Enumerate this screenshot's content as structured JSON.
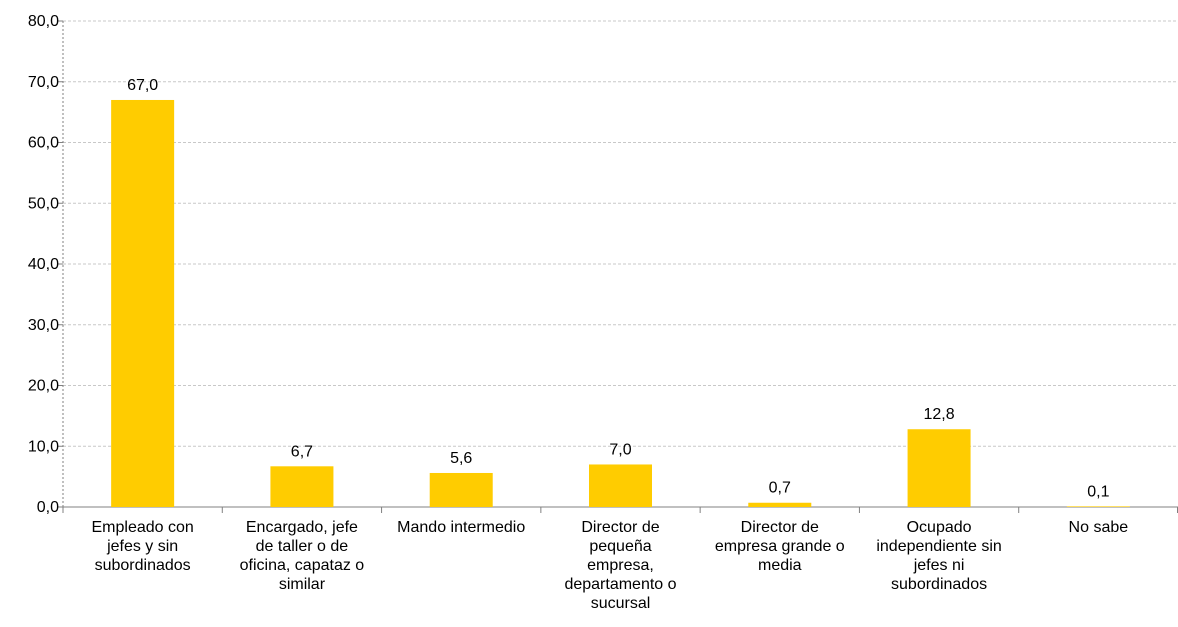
{
  "chart_data": {
    "type": "bar",
    "categories": [
      "Empleado con jefes y sin subordinados",
      "Encargado, jefe de taller o de oficina, capataz o similar",
      "Mando intermedio",
      "Director de pequeña empresa, departamento o sucursal",
      "Director de empresa grande o media",
      "Ocupado independiente sin jefes ni subordinados",
      "No sabe"
    ],
    "category_lines": [
      [
        "Empleado con",
        "jefes y sin",
        "subordinados"
      ],
      [
        "Encargado, jefe",
        "de taller o de",
        "oficina, capataz o",
        "similar"
      ],
      [
        "Mando intermedio"
      ],
      [
        "Director de",
        "pequeña",
        "empresa,",
        "departamento o",
        "sucursal"
      ],
      [
        "Director de",
        "empresa grande o",
        "media"
      ],
      [
        "Ocupado",
        "independiente sin",
        "jefes ni",
        "subordinados"
      ],
      [
        "No sabe"
      ]
    ],
    "values": [
      67.0,
      6.7,
      5.6,
      7.0,
      0.7,
      12.8,
      0.1
    ],
    "value_labels": [
      "67,0",
      "6,7",
      "5,6",
      "7,0",
      "0,7",
      "12,8",
      "0,1"
    ],
    "yticks": [
      "0,0",
      "10,0",
      "20,0",
      "30,0",
      "40,0",
      "50,0",
      "60,0",
      "70,0",
      "80,0"
    ],
    "ylim": [
      0,
      80
    ],
    "grid": true,
    "legend": "none",
    "bar_color": "#FFCC00",
    "title": "",
    "xlabel": "",
    "ylabel": ""
  }
}
